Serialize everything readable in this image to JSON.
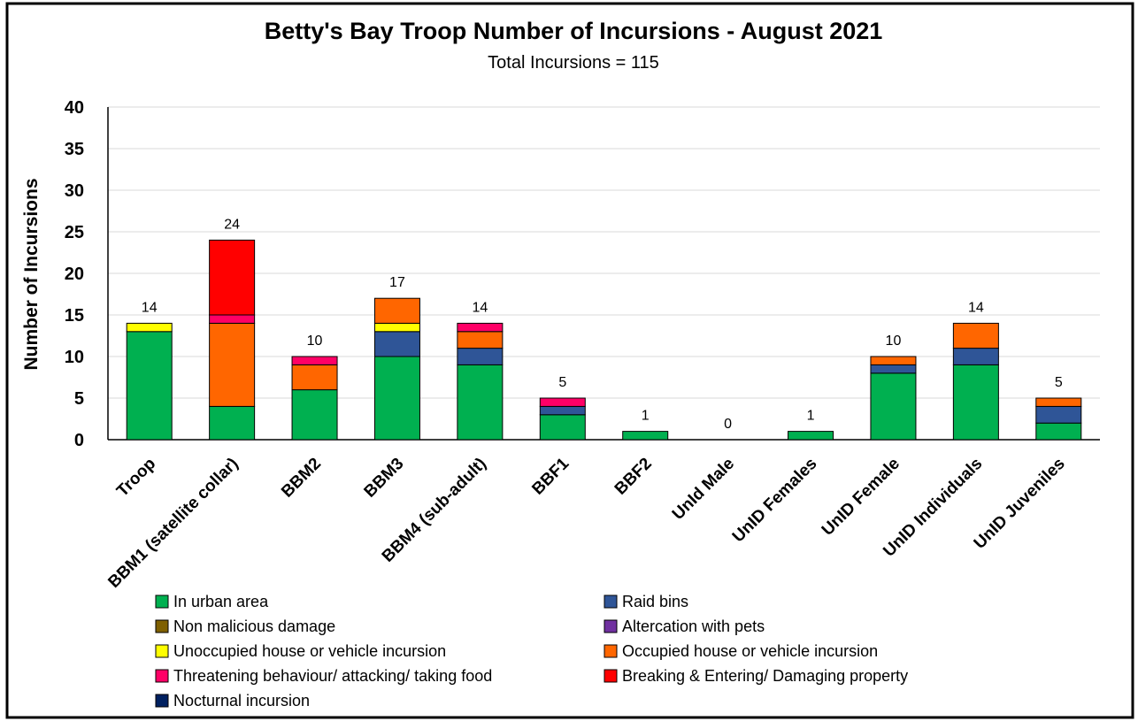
{
  "chart_data": {
    "type": "bar",
    "stacked": true,
    "title": "Betty's Bay Troop Number of Incursions - August 2021",
    "subtitle": "Total Incursions = 115",
    "ylabel": "Number of Incursions",
    "xlabel": "",
    "ylim": [
      0,
      40
    ],
    "yticks": [
      0,
      5,
      10,
      15,
      20,
      25,
      30,
      35,
      40
    ],
    "grid": true,
    "legend_position": "bottom",
    "categories": [
      "Troop",
      "BBM1 (satellite collar)",
      "BBM2",
      "BBM3",
      "BBM4 (sub-adult)",
      "BBF1",
      "BBF2",
      "UnId Male",
      "UnID Females",
      "UnID Female",
      "UnID Individuals",
      "UnID Juveniles"
    ],
    "totals": [
      14,
      24,
      10,
      17,
      14,
      5,
      1,
      0,
      1,
      10,
      14,
      5
    ],
    "series": [
      {
        "name": "In urban area",
        "color": "#00b050",
        "values": [
          13,
          4,
          6,
          10,
          9,
          3,
          1,
          0,
          1,
          8,
          9,
          2
        ]
      },
      {
        "name": "Raid bins",
        "color": "#2f5597",
        "values": [
          0,
          0,
          0,
          3,
          2,
          1,
          0,
          0,
          0,
          1,
          2,
          2
        ]
      },
      {
        "name": "Non malicious damage",
        "color": "#7f6000",
        "values": [
          0,
          0,
          0,
          0,
          0,
          0,
          0,
          0,
          0,
          0,
          0,
          0
        ]
      },
      {
        "name": "Altercation with pets",
        "color": "#7030a0",
        "values": [
          0,
          0,
          0,
          0,
          0,
          0,
          0,
          0,
          0,
          0,
          0,
          0
        ]
      },
      {
        "name": "Unoccupied house or vehicle incursion",
        "color": "#ffff00",
        "values": [
          1,
          0,
          0,
          1,
          0,
          0,
          0,
          0,
          0,
          0,
          0,
          0
        ]
      },
      {
        "name": "Occupied house or vehicle incursion",
        "color": "#ff6600",
        "values": [
          0,
          10,
          3,
          3,
          2,
          0,
          0,
          0,
          0,
          1,
          3,
          1
        ]
      },
      {
        "name": "Threatening behaviour/ attacking/ taking food",
        "color": "#ff0066",
        "values": [
          0,
          1,
          1,
          0,
          1,
          1,
          0,
          0,
          0,
          0,
          0,
          0
        ]
      },
      {
        "name": "Breaking & Entering/ Damaging property",
        "color": "#ff0000",
        "values": [
          0,
          9,
          0,
          0,
          0,
          0,
          0,
          0,
          0,
          0,
          0,
          0
        ]
      },
      {
        "name": "Nocturnal incursion",
        "color": "#002060",
        "values": [
          0,
          0,
          0,
          0,
          0,
          0,
          0,
          0,
          0,
          0,
          0,
          0
        ]
      }
    ]
  }
}
